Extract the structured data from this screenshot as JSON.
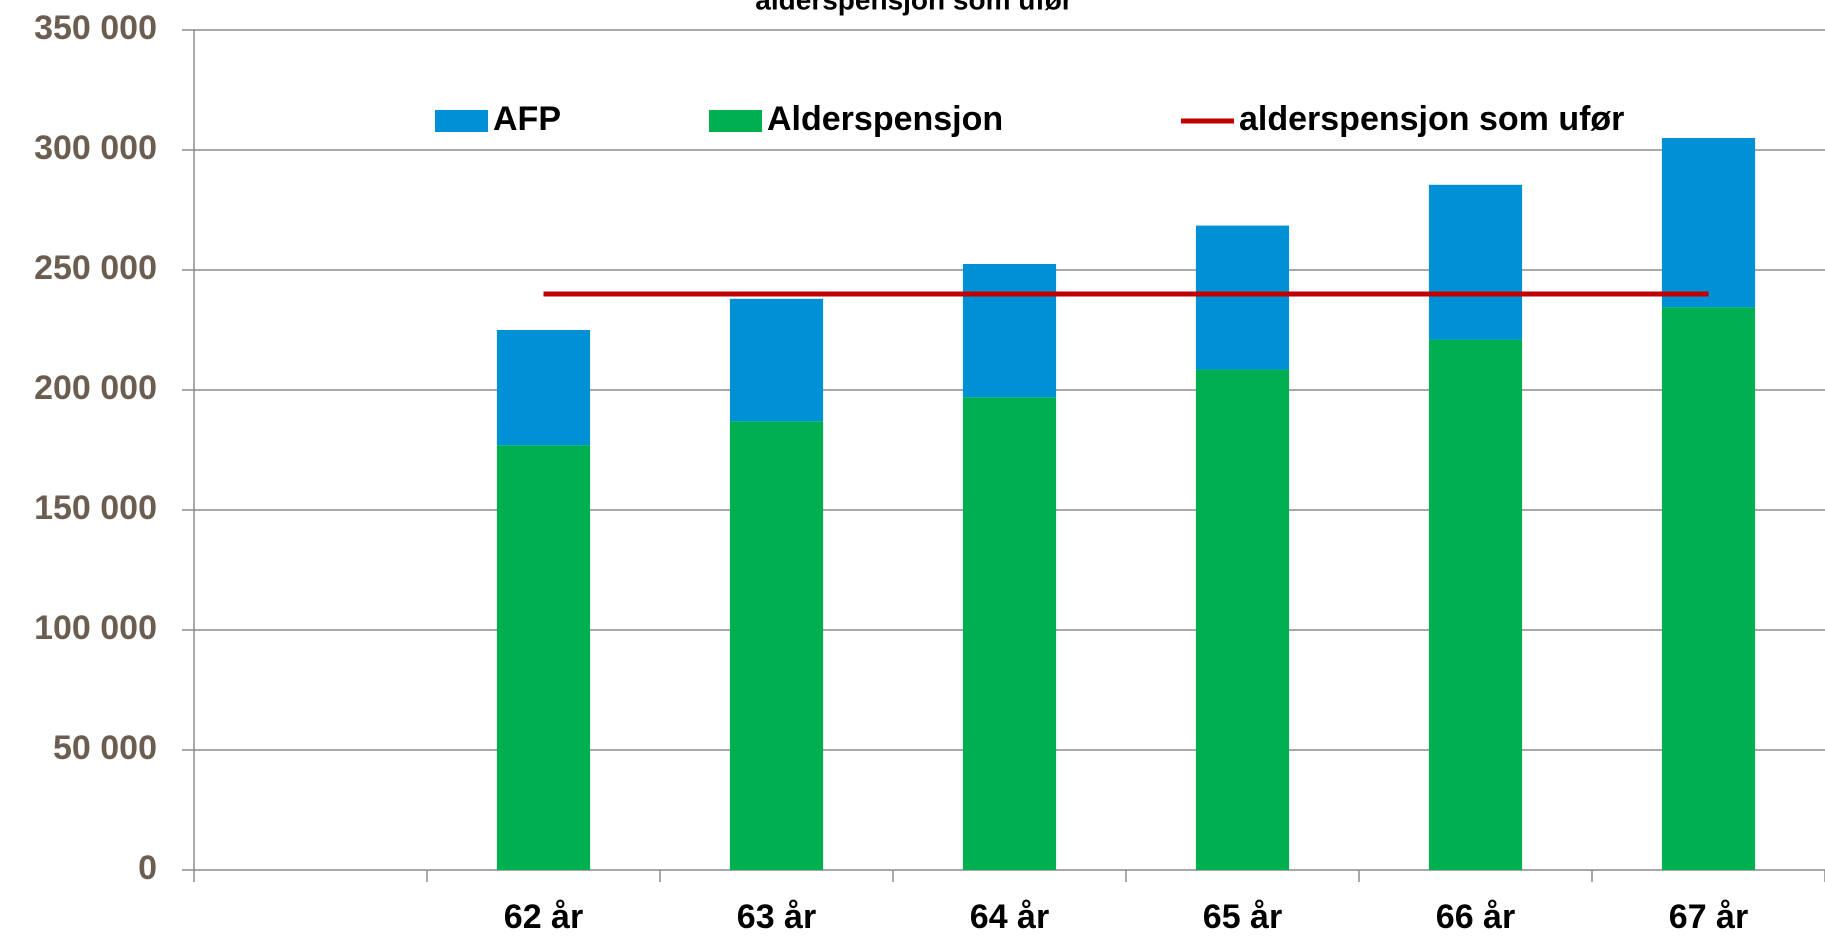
{
  "chart_data": {
    "type": "bar",
    "stacked": true,
    "title": "alderspensjon som ufør",
    "categories": [
      null,
      "62 år",
      "63 år",
      "64 år",
      "65 år",
      "66 år",
      "67 år"
    ],
    "series": [
      {
        "name": "AFP",
        "color": "#0090d5",
        "values": [
          null,
          48000,
          51000,
          55500,
          60000,
          64500,
          70500
        ]
      },
      {
        "name": "Alderspensjon",
        "color": "#00b050",
        "values": [
          null,
          177000,
          187000,
          197000,
          208500,
          221000,
          234500
        ]
      },
      {
        "name": "alderspensjon som ufør",
        "type": "line",
        "color": "#c00000",
        "values": [
          null,
          240000,
          240000,
          240000,
          240000,
          240000,
          240000
        ]
      }
    ],
    "ylim": [
      0,
      350000
    ],
    "yticks": [
      0,
      {
        "value": 50000,
        "label": "50 000"
      },
      {
        "value": 100000,
        "label": "100 000"
      },
      {
        "value": 150000,
        "label": "150 000"
      },
      {
        "value": 200000,
        "label": "200 000"
      },
      {
        "value": 250000,
        "label": "250 000"
      },
      {
        "value": 300000,
        "label": "300 000"
      },
      {
        "value": 350000,
        "label": "350 000"
      }
    ],
    "grid": true,
    "legend": "top"
  }
}
